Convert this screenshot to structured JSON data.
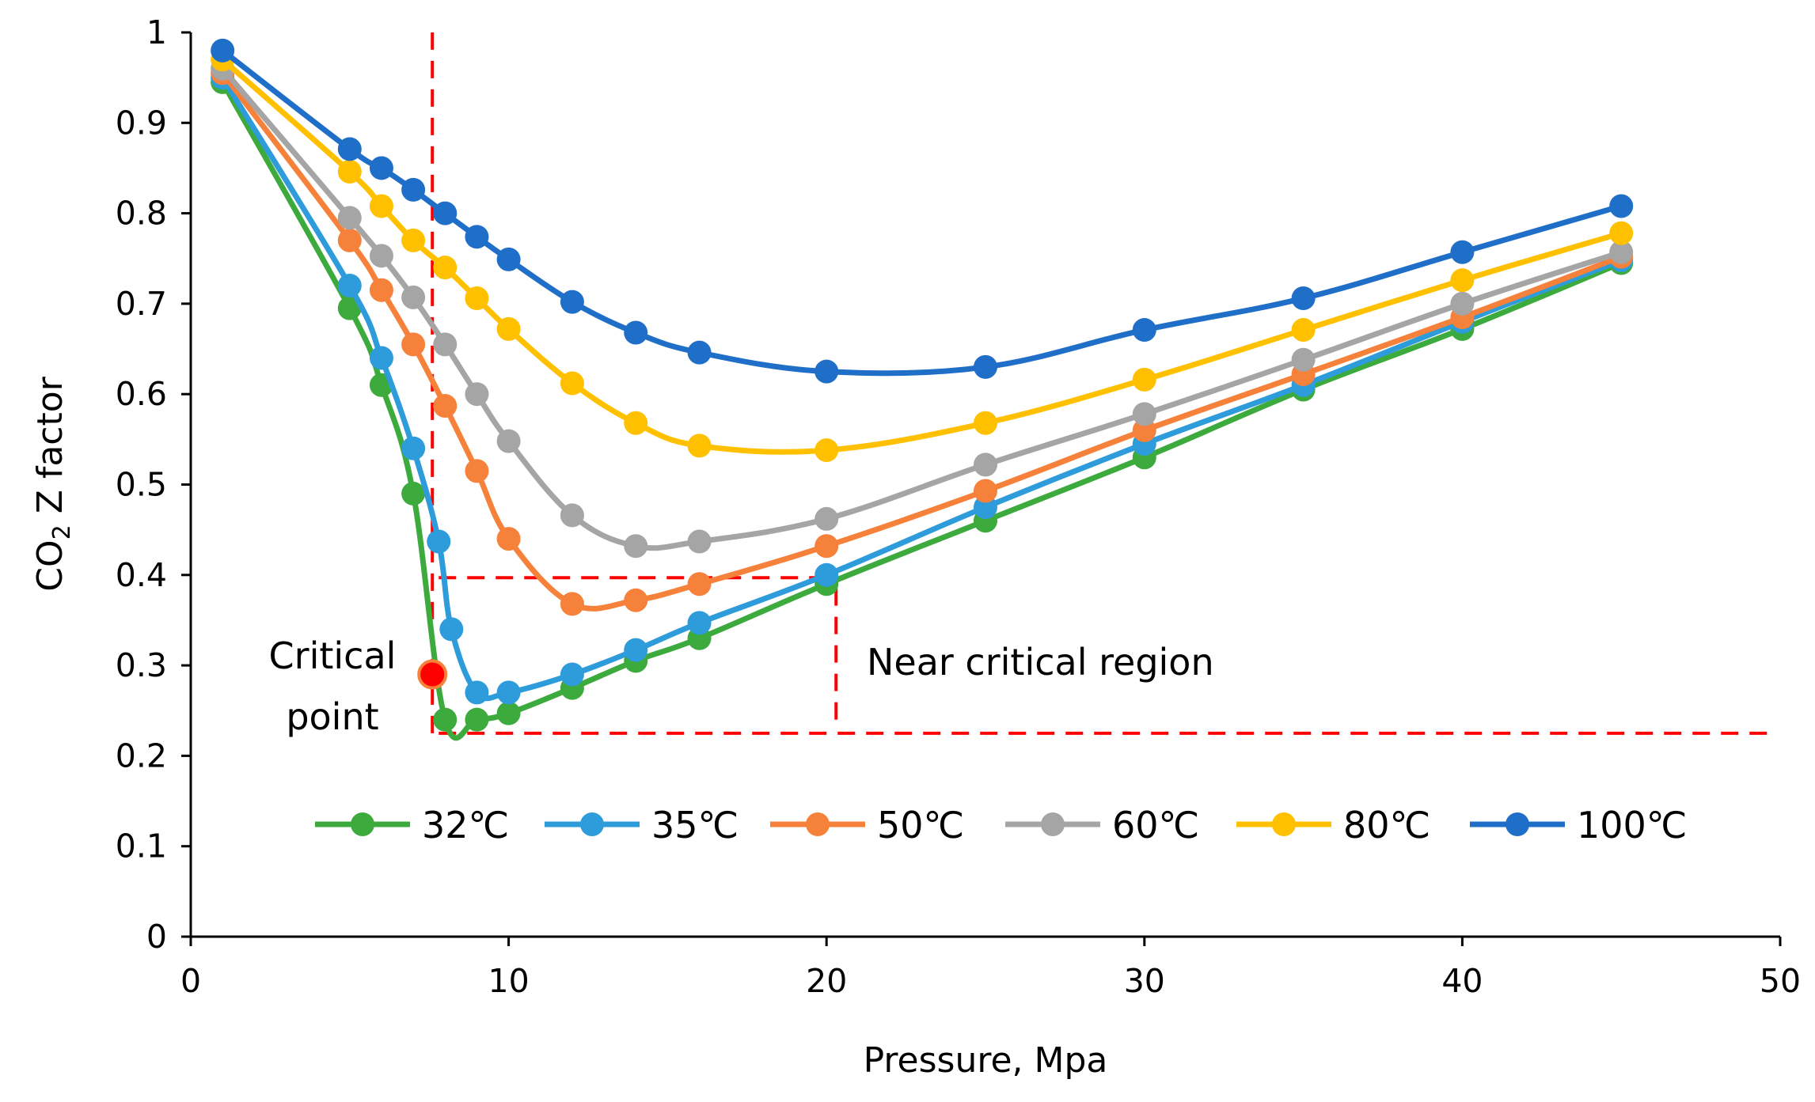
{
  "chart_data": {
    "type": "line",
    "xlabel": "Pressure, Mpa",
    "ylabel_main": "CO",
    "ylabel_sub": "2",
    "ylabel_rest": " Z factor",
    "xlim": [
      0,
      50
    ],
    "ylim": [
      0,
      1
    ],
    "xticks": [
      "0",
      "10",
      "20",
      "30",
      "40",
      "50"
    ],
    "yticks": [
      "0",
      "0.1",
      "0.2",
      "0.3",
      "0.4",
      "0.5",
      "0.6",
      "0.7",
      "0.8",
      "0.9",
      "1"
    ],
    "grid": false,
    "legend_position": "bottom-inside",
    "series": [
      {
        "name": "32℃",
        "color": "#3DAA3D",
        "x": [
          1,
          5,
          6,
          7,
          8,
          9,
          10,
          12,
          14,
          16,
          20,
          25,
          30,
          35,
          40,
          45
        ],
        "y": [
          0.945,
          0.695,
          0.61,
          0.49,
          0.24,
          0.24,
          0.247,
          0.275,
          0.305,
          0.33,
          0.39,
          0.46,
          0.53,
          0.605,
          0.672,
          0.745
        ]
      },
      {
        "name": "35℃",
        "color": "#2E9BDA",
        "x": [
          1,
          5,
          6,
          7,
          7.8,
          8.2,
          9,
          10,
          12,
          14,
          16,
          20,
          25,
          30,
          35,
          40,
          45
        ],
        "y": [
          0.95,
          0.72,
          0.64,
          0.54,
          0.437,
          0.34,
          0.27,
          0.27,
          0.29,
          0.317,
          0.347,
          0.4,
          0.475,
          0.545,
          0.61,
          0.68,
          0.748
        ]
      },
      {
        "name": "50℃",
        "color": "#F5813A",
        "x": [
          1,
          5,
          6,
          7,
          8,
          9,
          10,
          12,
          14,
          16,
          20,
          25,
          30,
          35,
          40,
          45
        ],
        "y": [
          0.955,
          0.77,
          0.715,
          0.655,
          0.587,
          0.515,
          0.44,
          0.368,
          0.372,
          0.39,
          0.432,
          0.493,
          0.56,
          0.622,
          0.685,
          0.752
        ]
      },
      {
        "name": "60℃",
        "color": "#A5A5A5",
        "x": [
          1,
          5,
          6,
          7,
          8,
          9,
          10,
          12,
          14,
          16,
          20,
          25,
          30,
          35,
          40,
          45
        ],
        "y": [
          0.96,
          0.795,
          0.753,
          0.707,
          0.655,
          0.6,
          0.548,
          0.466,
          0.432,
          0.437,
          0.462,
          0.522,
          0.578,
          0.638,
          0.7,
          0.757
        ]
      },
      {
        "name": "80℃",
        "color": "#FFC000",
        "x": [
          1,
          5,
          6,
          7,
          8,
          9,
          10,
          12,
          14,
          16,
          20,
          25,
          30,
          35,
          40,
          45
        ],
        "y": [
          0.97,
          0.846,
          0.808,
          0.77,
          0.74,
          0.706,
          0.672,
          0.612,
          0.568,
          0.543,
          0.538,
          0.568,
          0.616,
          0.671,
          0.726,
          0.778
        ]
      },
      {
        "name": "100℃",
        "color": "#1F6FC8",
        "x": [
          1,
          5,
          6,
          7,
          8,
          9,
          10,
          12,
          14,
          16,
          20,
          25,
          30,
          35,
          40,
          45
        ],
        "y": [
          0.98,
          0.871,
          0.85,
          0.826,
          0.8,
          0.774,
          0.749,
          0.702,
          0.668,
          0.646,
          0.625,
          0.63,
          0.671,
          0.706,
          0.757,
          0.808
        ]
      }
    ],
    "critical_point": {
      "x": 7.6,
      "y": 0.29,
      "color": "#FF0000",
      "edge": "#F5813A"
    },
    "annotations": {
      "critical_line1": "Critical",
      "critical_line2": "point",
      "near_critical": "Near critical region"
    },
    "reference_lines": {
      "color": "#FF0000",
      "vertical_critical": {
        "x": 7.6,
        "y": [
          0.225,
          1.0
        ]
      },
      "horizontal_bottom": {
        "y": 0.225,
        "x": [
          7.8,
          49.6
        ]
      },
      "horizontal_region": {
        "y": 0.397,
        "x": [
          7.8,
          20.3
        ]
      },
      "vertical_region": {
        "x": 20.3,
        "y": [
          0.24,
          0.397
        ]
      }
    }
  }
}
